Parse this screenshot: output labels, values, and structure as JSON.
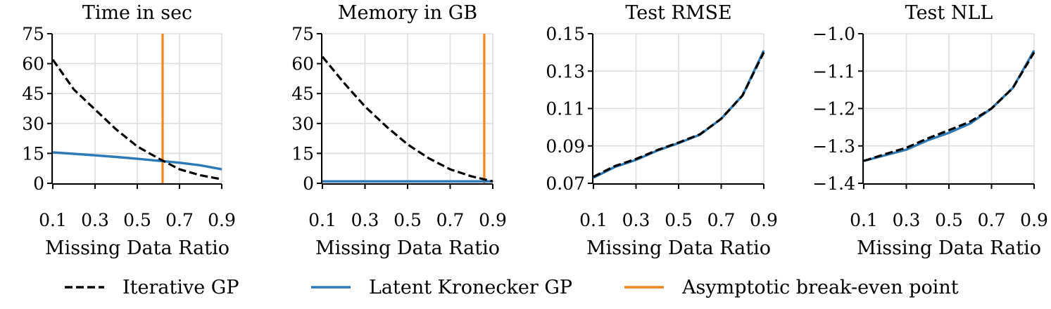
{
  "colors": {
    "iterative": "#000000",
    "kronecker": "#2e7ab7",
    "breakeven": "#f5851f",
    "grid": "#dedede"
  },
  "legend": [
    {
      "key": "iterative",
      "label": "Iterative GP",
      "style": "dashed"
    },
    {
      "key": "kronecker",
      "label": "Latent Kronecker GP",
      "style": "solid"
    },
    {
      "key": "breakeven",
      "label": "Asymptotic break-even point",
      "style": "solid"
    }
  ],
  "chart_data": [
    {
      "type": "line",
      "title": "Time in sec",
      "xlabel": "Missing Data Ratio",
      "ylabel": "",
      "xlim": [
        0.1,
        0.9
      ],
      "ylim": [
        0,
        75
      ],
      "xticks": [
        0.1,
        0.3,
        0.5,
        0.7,
        0.9
      ],
      "xtick_labels": [
        "0.1",
        "0.3",
        "0.5",
        "0.7",
        "0.9"
      ],
      "yticks": [
        0,
        15,
        30,
        45,
        60,
        75
      ],
      "ytick_labels": [
        "0",
        "15",
        "30",
        "45",
        "60",
        "75"
      ],
      "x": [
        0.1,
        0.2,
        0.3,
        0.4,
        0.5,
        0.6,
        0.7,
        0.8,
        0.9
      ],
      "series": [
        {
          "name": "Iterative GP",
          "key": "iterative",
          "values": [
            62,
            47,
            37,
            27,
            18.5,
            12.5,
            7,
            4,
            2
          ]
        },
        {
          "name": "Latent Kronecker GP",
          "key": "kronecker",
          "values": [
            15.5,
            14.8,
            14,
            13.2,
            12.3,
            11.3,
            10.3,
            9,
            7
          ]
        }
      ],
      "vline": {
        "name": "Asymptotic break-even point",
        "key": "breakeven",
        "x": 0.62
      }
    },
    {
      "type": "line",
      "title": "Memory in GB",
      "xlabel": "Missing Data Ratio",
      "ylabel": "",
      "xlim": [
        0.1,
        0.9
      ],
      "ylim": [
        0,
        75
      ],
      "xticks": [
        0.1,
        0.3,
        0.5,
        0.7,
        0.9
      ],
      "xtick_labels": [
        "0.1",
        "0.3",
        "0.5",
        "0.7",
        "0.9"
      ],
      "yticks": [
        0,
        15,
        30,
        45,
        60,
        75
      ],
      "ytick_labels": [
        "0",
        "15",
        "30",
        "45",
        "60",
        "75"
      ],
      "x": [
        0.1,
        0.2,
        0.3,
        0.4,
        0.5,
        0.6,
        0.7,
        0.8,
        0.9
      ],
      "series": [
        {
          "name": "Iterative GP",
          "key": "iterative",
          "values": [
            63.5,
            50.5,
            38.5,
            28.5,
            19.5,
            12.5,
            7,
            3.5,
            1
          ]
        },
        {
          "name": "Latent Kronecker GP",
          "key": "kronecker",
          "values": [
            1,
            1,
            1,
            1,
            1,
            1,
            1,
            1,
            1
          ]
        }
      ],
      "vline": {
        "name": "Asymptotic break-even point",
        "key": "breakeven",
        "x": 0.86
      }
    },
    {
      "type": "line",
      "title": "Test RMSE",
      "xlabel": "Missing Data Ratio",
      "ylabel": "",
      "xlim": [
        0.1,
        0.9
      ],
      "ylim": [
        0.07,
        0.15
      ],
      "xticks": [
        0.1,
        0.3,
        0.5,
        0.7,
        0.9
      ],
      "xtick_labels": [
        "0.1",
        "0.3",
        "0.5",
        "0.7",
        "0.9"
      ],
      "yticks": [
        0.07,
        0.09,
        0.11,
        0.13,
        0.15
      ],
      "ytick_labels": [
        "0.07",
        "0.09",
        "0.11",
        "0.13",
        "0.15"
      ],
      "x": [
        0.1,
        0.2,
        0.3,
        0.4,
        0.5,
        0.6,
        0.7,
        0.8,
        0.9
      ],
      "series": [
        {
          "name": "Latent Kronecker GP",
          "key": "kronecker",
          "values": [
            0.073,
            0.0787,
            0.0825,
            0.0875,
            0.0915,
            0.096,
            0.1045,
            0.117,
            0.141
          ]
        },
        {
          "name": "Iterative GP",
          "key": "iterative",
          "values": [
            0.0735,
            0.0792,
            0.083,
            0.0878,
            0.0918,
            0.0962,
            0.1045,
            0.117,
            0.14
          ]
        }
      ]
    },
    {
      "type": "line",
      "title": "Test NLL",
      "xlabel": "Missing Data Ratio",
      "ylabel": "",
      "xlim": [
        0.1,
        0.9
      ],
      "ylim": [
        -1.4,
        -1.0
      ],
      "xticks": [
        0.1,
        0.3,
        0.5,
        0.7,
        0.9
      ],
      "xtick_labels": [
        "0.1",
        "0.3",
        "0.5",
        "0.7",
        "0.9"
      ],
      "yticks": [
        -1.4,
        -1.3,
        -1.2,
        -1.1,
        -1.0
      ],
      "ytick_labels": [
        "−1.4",
        "−1.3",
        "−1.2",
        "−1.1",
        "−1.0"
      ],
      "x": [
        0.1,
        0.2,
        0.3,
        0.4,
        0.5,
        0.6,
        0.7,
        0.8,
        0.9
      ],
      "series": [
        {
          "name": "Latent Kronecker GP",
          "key": "kronecker",
          "values": [
            -1.34,
            -1.325,
            -1.31,
            -1.285,
            -1.265,
            -1.24,
            -1.2,
            -1.145,
            -1.045
          ]
        },
        {
          "name": "Iterative GP",
          "key": "iterative",
          "values": [
            -1.34,
            -1.322,
            -1.305,
            -1.28,
            -1.258,
            -1.235,
            -1.2,
            -1.145,
            -1.05
          ]
        }
      ]
    }
  ]
}
